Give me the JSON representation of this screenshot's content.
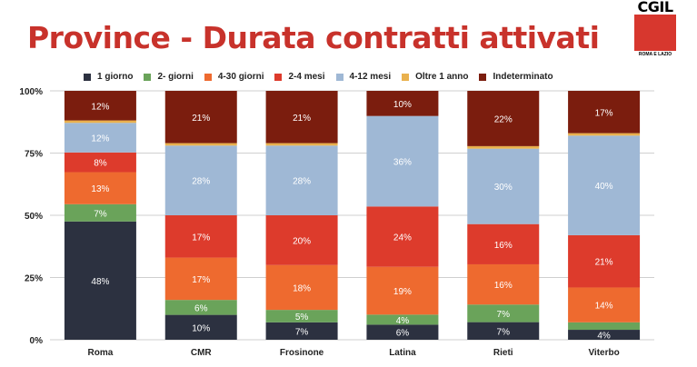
{
  "header": {
    "title": "Province - Durata contratti attivati",
    "logo_text": "CGIL",
    "logo_sub": "ROMA E LAZIO"
  },
  "chart_data": {
    "type": "bar",
    "stacked": true,
    "categories": [
      "Roma",
      "CMR",
      "Frosinone",
      "Latina",
      "Rieti",
      "Viterbo"
    ],
    "y_ticks": [
      "0%",
      "25%",
      "50%",
      "75%",
      "100%"
    ],
    "ylim": [
      0,
      100
    ],
    "legend_position": "top",
    "grid": true,
    "series": [
      {
        "name": "1 giorno",
        "color": "#2c3140",
        "values": [
          48,
          10,
          7,
          6,
          7,
          4
        ],
        "labels": [
          "48%",
          "10%",
          "7%",
          "6%",
          "7%",
          "4%"
        ]
      },
      {
        "name": "2- giorni",
        "color": "#6aa35a",
        "values": [
          7,
          6,
          5,
          4,
          7,
          3
        ],
        "labels": [
          "7%",
          "6%",
          "5%",
          "4%",
          "7%",
          "3%"
        ]
      },
      {
        "name": "4-30 giorni",
        "color": "#ee6a2f",
        "values": [
          13,
          17,
          18,
          19,
          16,
          14
        ],
        "labels": [
          "13%",
          "17%",
          "18%",
          "19%",
          "16%",
          "14%"
        ]
      },
      {
        "name": "2-4 mesi",
        "color": "#dd3b2c",
        "values": [
          8,
          17,
          20,
          24,
          16,
          21
        ],
        "labels": [
          "8%",
          "17%",
          "20%",
          "24%",
          "16%",
          "21%"
        ]
      },
      {
        "name": "4-12 mesi",
        "color": "#9fb8d5",
        "values": [
          12,
          28,
          28,
          36,
          30,
          40
        ],
        "labels": [
          "12%",
          "28%",
          "28%",
          "36%",
          "30%",
          "40%"
        ]
      },
      {
        "name": "Oltre 1 anno",
        "color": "#e9b14e",
        "values": [
          1,
          1,
          1,
          0,
          1,
          1
        ],
        "labels": [
          "1%",
          "1%",
          "1%",
          "",
          "1%",
          "1%"
        ]
      },
      {
        "name": "Indeterminato",
        "color": "#7b1d0e",
        "values": [
          12,
          21,
          21,
          10,
          22,
          17
        ],
        "labels": [
          "12%",
          "21%",
          "21%",
          "10%",
          "22%",
          "17%"
        ]
      }
    ]
  }
}
